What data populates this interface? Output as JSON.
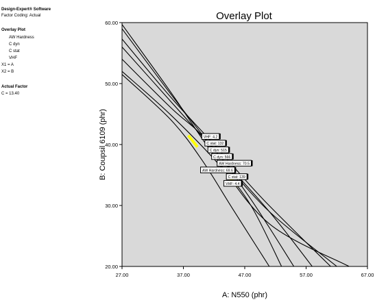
{
  "software": {
    "name": "Design-Expert® Software",
    "coding": "Factor Coding: Actual"
  },
  "legend": {
    "heading": "Overlay Plot",
    "items": [
      "AW Hardness",
      "C dyn",
      "C stat",
      "VHF"
    ],
    "factors": [
      "X1 = A",
      "X2 = B"
    ]
  },
  "actual_factor": {
    "heading": "Actual Factor",
    "value": "C = 13.40"
  },
  "colors": {
    "plot_bg": "#d9d9d9",
    "contour": "#000000",
    "highlight": "#ffff00",
    "flag_bg": "#ffffff"
  },
  "chart_data": {
    "type": "line",
    "title": "Overlay Plot",
    "xlabel": "A: N550 (phr)",
    "ylabel": "B: Coupsil 6109 (phr)",
    "xlim": [
      27,
      67
    ],
    "ylim": [
      20,
      60
    ],
    "xticks": [
      "27.00",
      "37.00",
      "47.00",
      "57.00",
      "67.00"
    ],
    "yticks": [
      "20.00",
      "30.00",
      "40.00",
      "50.00",
      "60.00"
    ],
    "grid": false,
    "series": [
      {
        "points": [
          [
            27,
            59.7
          ],
          [
            35,
            48.5
          ],
          [
            42,
            38.2
          ],
          [
            51,
            27
          ],
          [
            64,
            20
          ]
        ]
      },
      {
        "points": [
          [
            27,
            59.0
          ],
          [
            35,
            48.2
          ],
          [
            43,
            38.0
          ],
          [
            51,
            29
          ],
          [
            62,
            20
          ]
        ]
      },
      {
        "points": [
          [
            27,
            57.3
          ],
          [
            35,
            47.7
          ],
          [
            42,
            40.0
          ],
          [
            50,
            31
          ],
          [
            61,
            20
          ]
        ]
      },
      {
        "points": [
          [
            27,
            56.0
          ],
          [
            35,
            47.0
          ],
          [
            43,
            38.0
          ],
          [
            51,
            29
          ],
          [
            58,
            20
          ]
        ]
      },
      {
        "points": [
          [
            27,
            54.0
          ],
          [
            35,
            46.0
          ],
          [
            41,
            40.5
          ],
          [
            48,
            31
          ],
          [
            55,
            20
          ]
        ]
      },
      {
        "points": [
          [
            27,
            52.0
          ],
          [
            35,
            44.8
          ],
          [
            43,
            36.5
          ],
          [
            48,
            30
          ],
          [
            53,
            20
          ]
        ]
      },
      {
        "points": [
          [
            27,
            51.5
          ],
          [
            35,
            44.0
          ],
          [
            40,
            37.5
          ],
          [
            45,
            29.5
          ],
          [
            51,
            20
          ]
        ]
      }
    ],
    "highlights": [
      {
        "points": [
          [
            37.8,
            41.5
          ],
          [
            39.3,
            39.6
          ]
        ]
      },
      {
        "points": [
          [
            44.2,
            34.8
          ],
          [
            45.9,
            33.2
          ]
        ]
      }
    ],
    "flags": [
      {
        "text": "VHF: 4.2",
        "x": 40.0,
        "y": 41.3
      },
      {
        "text": "C stat: 132",
        "x": 40.5,
        "y": 40.2
      },
      {
        "text": "C dyn: 515",
        "x": 41.0,
        "y": 39.1
      },
      {
        "text": "C dyn: 566",
        "x": 41.6,
        "y": 38.0
      },
      {
        "text": "AW Hardness: 70.5",
        "x": 42.5,
        "y": 36.9
      },
      {
        "text": "AW Hardness: 69.6",
        "x": 39.8,
        "y": 35.8
      },
      {
        "text": "C stat: 139",
        "x": 44.0,
        "y": 34.7
      },
      {
        "text": "VHF: 4.4",
        "x": 43.6,
        "y": 33.6
      }
    ]
  }
}
